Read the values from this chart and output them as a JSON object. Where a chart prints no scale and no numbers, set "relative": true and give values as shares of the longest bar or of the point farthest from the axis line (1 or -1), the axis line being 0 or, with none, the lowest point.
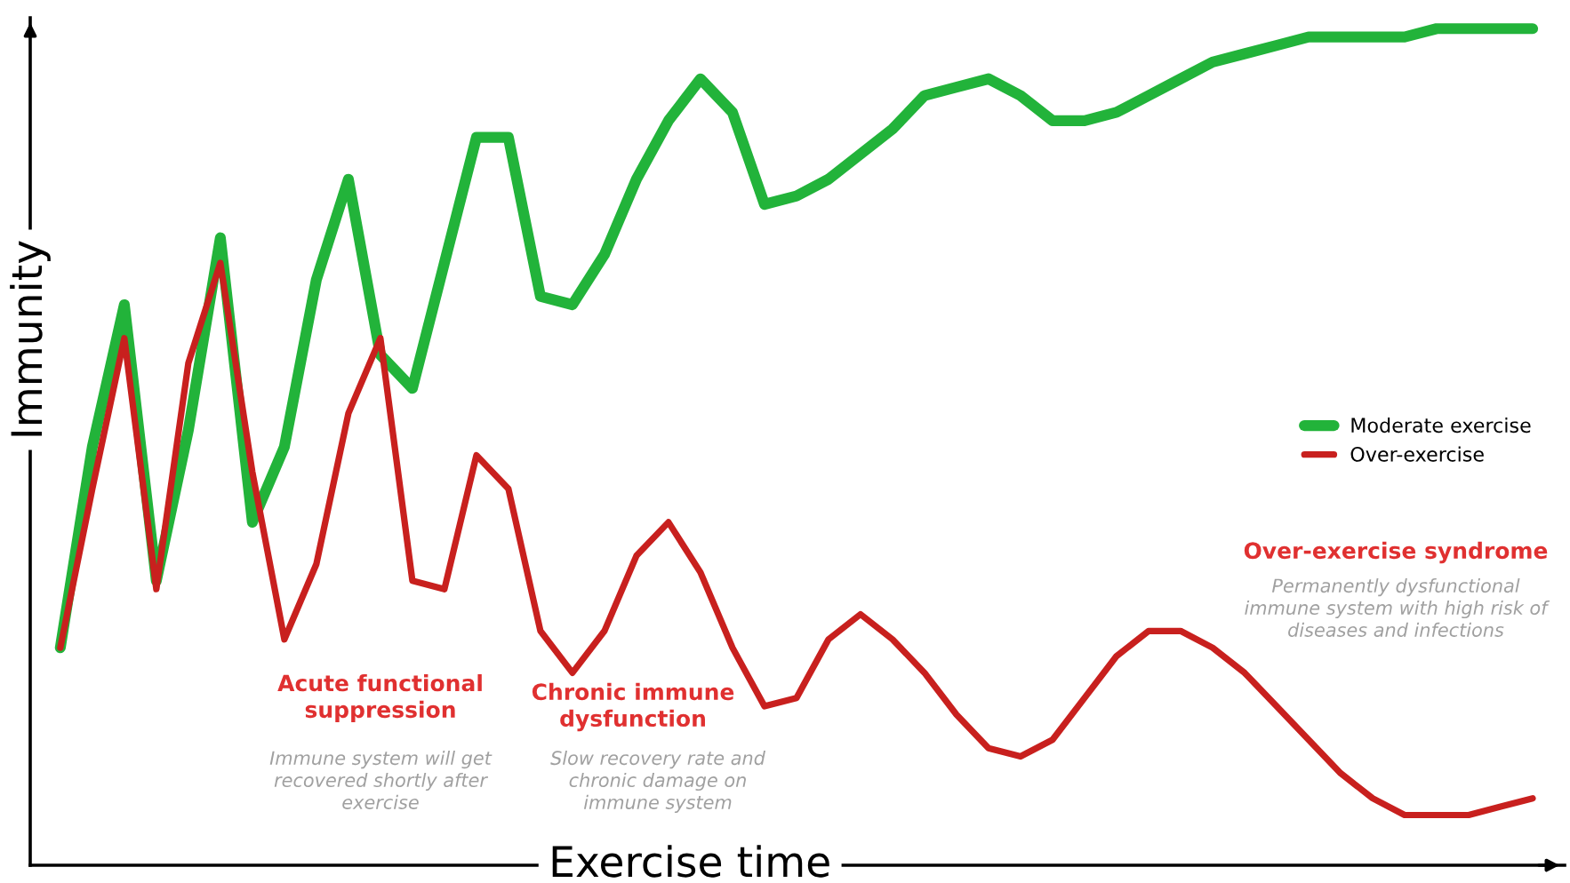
{
  "chart_data": {
    "type": "line",
    "relative": true,
    "xlabel": "Exercise time",
    "ylabel": "Immunity",
    "categories": [
      null,
      null,
      null,
      null,
      null,
      null,
      null,
      null,
      null,
      null,
      null,
      null,
      null,
      null,
      null,
      null,
      null,
      null,
      null,
      null,
      null,
      null,
      null,
      null,
      null,
      null,
      null,
      null,
      null,
      null,
      null,
      null,
      null,
      null,
      null,
      null,
      null,
      null,
      null,
      null,
      null,
      null,
      null,
      null,
      null,
      null,
      null
    ],
    "series": [
      {
        "name": "Moderate exercise",
        "color": "#22b33a",
        "values": [
          0.26,
          0.5,
          0.67,
          0.34,
          0.52,
          0.75,
          0.41,
          0.5,
          0.7,
          0.82,
          0.61,
          0.57,
          0.72,
          0.87,
          0.87,
          0.68,
          0.67,
          0.73,
          0.82,
          0.89,
          0.94,
          0.9,
          0.79,
          0.8,
          0.82,
          0.85,
          0.88,
          0.92,
          0.93,
          0.94,
          0.92,
          0.89,
          0.89,
          0.9,
          0.92,
          0.94,
          0.96,
          0.97,
          0.98,
          0.99,
          0.99,
          0.99,
          0.99,
          1,
          1,
          1,
          1
        ]
      },
      {
        "name": "Over-exercise",
        "color": "#c8201e",
        "values": [
          0.26,
          0.45,
          0.63,
          0.33,
          0.6,
          0.72,
          0.47,
          0.27,
          0.36,
          0.54,
          0.63,
          0.34,
          0.33,
          0.49,
          0.45,
          0.28,
          0.23,
          0.28,
          0.37,
          0.41,
          0.35,
          0.26,
          0.19,
          0.2,
          0.27,
          0.3,
          0.27,
          0.23,
          0.18,
          0.14,
          0.13,
          0.15,
          0.2,
          0.25,
          0.28,
          0.28,
          0.26,
          0.23,
          0.19,
          0.15,
          0.11,
          0.08,
          0.06,
          0.06,
          0.06,
          0.07,
          0.08
        ]
      }
    ],
    "annotations": [
      "Acute functional\nsuppression",
      "Immune system will get\nrecovered shortly after\nexercise",
      "Chronic immune\ndysfunction",
      "Slow recovery rate and\nchronic damage on\nimmune system",
      "Over-exercise syndrome",
      "Permanently dysfunctional\nimmune system with high risk of\ndiseases and infections"
    ],
    "legend": "right",
    "grid": false,
    "marker": "none",
    "line_style": "solid"
  }
}
